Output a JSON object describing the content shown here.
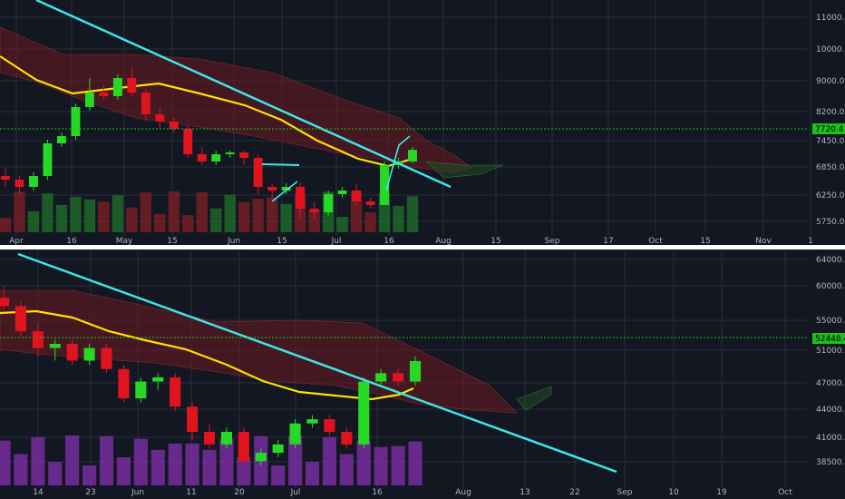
{
  "colors": {
    "background": "#131722",
    "grid": "#2a2e39",
    "up": "#26d926",
    "down": "#e0141e",
    "ma": "#ffe000",
    "trendline": "#3ee6e6",
    "cloud_bear": "#6b1a20",
    "cloud_bull": "#1d4a25",
    "current_price_line": "#1fbf1f",
    "divider": "#ffffff",
    "volume_up_top": "#1f6b2a",
    "volume_down_top": "#7a1f26",
    "volume_bottom": "#7d2fa8",
    "tick_text": "#b2b5be"
  },
  "chart_data": [
    {
      "type": "candlestick",
      "y_axis_ticks": [
        "11000.0",
        "10000.0",
        "9000.0",
        "8200.0",
        "7450.0",
        "6850.0",
        "6250.0",
        "5750.0"
      ],
      "x_axis_ticks": [
        "Apr",
        "16",
        "May",
        "15",
        "Jun",
        "15",
        "Jul",
        "16",
        "Aug",
        "15",
        "Sep",
        "17",
        "Oct",
        "15",
        "Nov",
        "1"
      ],
      "ylim": [
        5400,
        11700
      ],
      "current_price": "7720.4",
      "series": [
        {
          "name": "",
          "values": [
            {
              "t": "Apr 1",
              "o": 7000,
              "h": 7200,
              "l": 6700,
              "c": 6900
            },
            {
              "t": "Apr 5",
              "o": 6900,
              "h": 7000,
              "l": 6500,
              "c": 6700
            },
            {
              "t": "Apr 9",
              "o": 6700,
              "h": 7100,
              "l": 6600,
              "c": 7000
            },
            {
              "t": "Apr 13",
              "o": 7000,
              "h": 8000,
              "l": 6900,
              "c": 7900
            },
            {
              "t": "Apr 17",
              "o": 7900,
              "h": 8200,
              "l": 7800,
              "c": 8100
            },
            {
              "t": "Apr 21",
              "o": 8100,
              "h": 9000,
              "l": 8000,
              "c": 8900
            },
            {
              "t": "Apr 25",
              "o": 8900,
              "h": 9700,
              "l": 8800,
              "c": 9300
            },
            {
              "t": "Apr 29",
              "o": 9300,
              "h": 9500,
              "l": 9100,
              "c": 9200
            },
            {
              "t": "May 3",
              "o": 9200,
              "h": 9800,
              "l": 9100,
              "c": 9700
            },
            {
              "t": "May 7",
              "o": 9700,
              "h": 10000,
              "l": 9200,
              "c": 9300
            },
            {
              "t": "May 11",
              "o": 9300,
              "h": 9400,
              "l": 8500,
              "c": 8700
            },
            {
              "t": "May 15",
              "o": 8700,
              "h": 8900,
              "l": 8300,
              "c": 8500
            },
            {
              "t": "May 19",
              "o": 8500,
              "h": 8600,
              "l": 8200,
              "c": 8300
            },
            {
              "t": "May 23",
              "o": 8300,
              "h": 8400,
              "l": 7500,
              "c": 7600
            },
            {
              "t": "May 27",
              "o": 7600,
              "h": 7800,
              "l": 7300,
              "c": 7400
            },
            {
              "t": "May 31",
              "o": 7400,
              "h": 7700,
              "l": 7300,
              "c": 7600
            },
            {
              "t": "Jun 4",
              "o": 7600,
              "h": 7700,
              "l": 7500,
              "c": 7650
            },
            {
              "t": "Jun 8",
              "o": 7650,
              "h": 7700,
              "l": 7300,
              "c": 7500
            },
            {
              "t": "Jun 12",
              "o": 7500,
              "h": 7600,
              "l": 6500,
              "c": 6700
            },
            {
              "t": "Jun 16",
              "o": 6700,
              "h": 6800,
              "l": 6400,
              "c": 6600
            },
            {
              "t": "Jun 20",
              "o": 6600,
              "h": 6800,
              "l": 6500,
              "c": 6700
            },
            {
              "t": "Jun 24",
              "o": 6700,
              "h": 6800,
              "l": 5800,
              "c": 6100
            },
            {
              "t": "Jun 28",
              "o": 6100,
              "h": 6300,
              "l": 5800,
              "c": 6000
            },
            {
              "t": "Jul 2",
              "o": 6000,
              "h": 6600,
              "l": 5900,
              "c": 6500
            },
            {
              "t": "Jul 6",
              "o": 6500,
              "h": 6700,
              "l": 6400,
              "c": 6600
            },
            {
              "t": "Jul 10",
              "o": 6600,
              "h": 6800,
              "l": 6200,
              "c": 6300
            },
            {
              "t": "Jul 14",
              "o": 6300,
              "h": 6400,
              "l": 6100,
              "c": 6200
            },
            {
              "t": "Jul 18",
              "o": 6200,
              "h": 7400,
              "l": 6200,
              "c": 7300
            },
            {
              "t": "Jul 22",
              "o": 7300,
              "h": 7500,
              "l": 7200,
              "c": 7400
            },
            {
              "t": "Jul 24",
              "o": 7400,
              "h": 7800,
              "l": 7350,
              "c": 7720
            }
          ]
        }
      ]
    },
    {
      "type": "candlestick",
      "y_axis_ticks": [
        "64000.0",
        "60000.0",
        "55000.0",
        "51000.0",
        "47000.0",
        "44000.0",
        "41000.0",
        "38500.0"
      ],
      "x_axis_ticks": [
        "14",
        "23",
        "Jun",
        "11",
        "20",
        "Jul",
        "16",
        "Aug",
        "13",
        "22",
        "Sep",
        "10",
        "19",
        "Oct"
      ],
      "ylim": [
        37500,
        65000
      ],
      "current_price": "52448.4",
      "series": [
        {
          "name": "",
          "values": [
            {
              "t": "May 5",
              "o": 60000,
              "h": 61500,
              "l": 58500,
              "c": 59000
            },
            {
              "t": "May 9",
              "o": 59000,
              "h": 59500,
              "l": 55500,
              "c": 56000
            },
            {
              "t": "May 13",
              "o": 56000,
              "h": 57000,
              "l": 53000,
              "c": 54000
            },
            {
              "t": "May 17",
              "o": 54000,
              "h": 55000,
              "l": 52500,
              "c": 54500
            },
            {
              "t": "May 21",
              "o": 54500,
              "h": 55000,
              "l": 52000,
              "c": 52500
            },
            {
              "t": "May 25",
              "o": 52500,
              "h": 54500,
              "l": 52000,
              "c": 54000
            },
            {
              "t": "May 29",
              "o": 54000,
              "h": 54500,
              "l": 51000,
              "c": 51500
            },
            {
              "t": "Jun 2",
              "o": 51500,
              "h": 52000,
              "l": 47500,
              "c": 48000
            },
            {
              "t": "Jun 6",
              "o": 48000,
              "h": 50500,
              "l": 47500,
              "c": 50000
            },
            {
              "t": "Jun 10",
              "o": 50000,
              "h": 51000,
              "l": 49000,
              "c": 50500
            },
            {
              "t": "Jun 14",
              "o": 50500,
              "h": 51000,
              "l": 46500,
              "c": 47000
            },
            {
              "t": "Jun 18",
              "o": 47000,
              "h": 47500,
              "l": 43000,
              "c": 44000
            },
            {
              "t": "Jun 22",
              "o": 44000,
              "h": 45000,
              "l": 42000,
              "c": 42500
            },
            {
              "t": "Jun 26",
              "o": 42500,
              "h": 44500,
              "l": 42000,
              "c": 44000
            },
            {
              "t": "Jun 30",
              "o": 44000,
              "h": 44500,
              "l": 40000,
              "c": 40500
            },
            {
              "t": "Jul 4",
              "o": 40500,
              "h": 42000,
              "l": 40000,
              "c": 41500
            },
            {
              "t": "Jul 8",
              "o": 41500,
              "h": 43000,
              "l": 41000,
              "c": 42500
            },
            {
              "t": "Jul 12",
              "o": 42500,
              "h": 45500,
              "l": 42000,
              "c": 45000
            },
            {
              "t": "Jul 16",
              "o": 45000,
              "h": 46000,
              "l": 44500,
              "c": 45500
            },
            {
              "t": "Jul 20",
              "o": 45500,
              "h": 46000,
              "l": 43500,
              "c": 44000
            },
            {
              "t": "Jul 24",
              "o": 44000,
              "h": 44500,
              "l": 42000,
              "c": 42500
            },
            {
              "t": "Jul 28",
              "o": 42500,
              "h": 50500,
              "l": 42000,
              "c": 50000
            },
            {
              "t": "Aug 1",
              "o": 50000,
              "h": 51500,
              "l": 49500,
              "c": 51000
            },
            {
              "t": "Aug 5",
              "o": 51000,
              "h": 51500,
              "l": 49500,
              "c": 50000
            },
            {
              "t": "Aug 8",
              "o": 50000,
              "h": 53000,
              "l": 49500,
              "c": 52448
            }
          ]
        }
      ]
    }
  ]
}
